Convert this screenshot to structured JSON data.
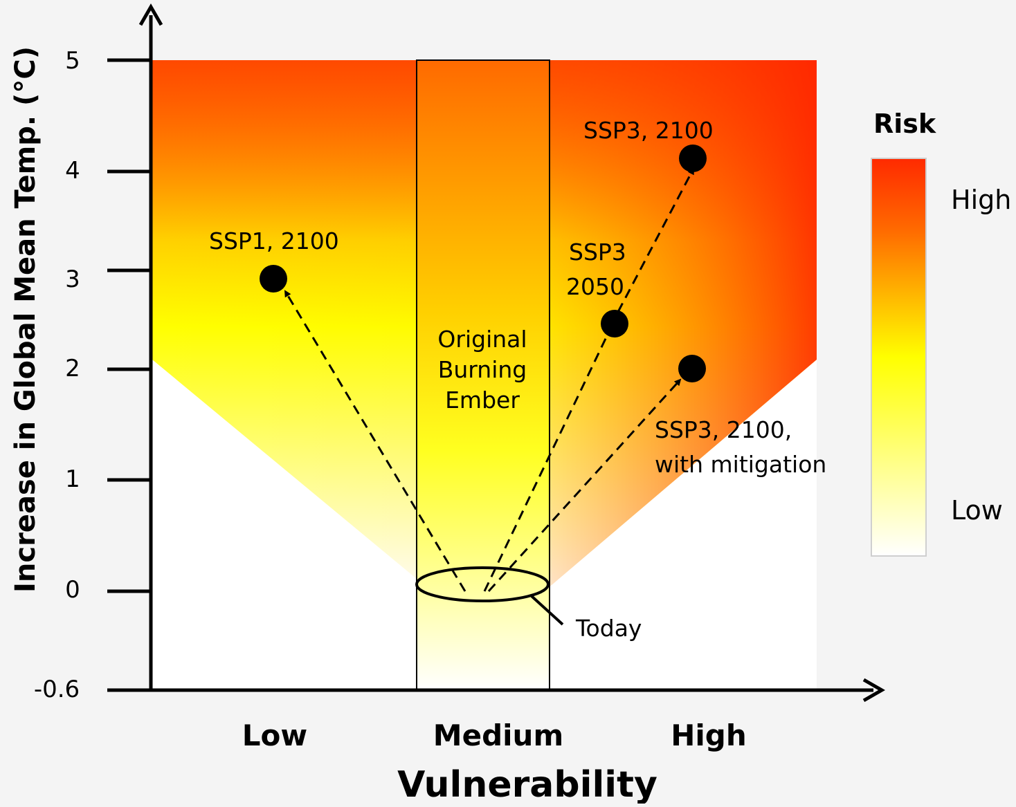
{
  "axes": {
    "y_label": "Increase in Global Mean Temp. (°C)",
    "y_ticks": [
      "5",
      "4",
      "3",
      "2",
      "1",
      "0",
      "-0.6"
    ],
    "x_label": "Vulnerability",
    "x_categories": [
      "Low",
      "Medium",
      "High"
    ]
  },
  "ember": {
    "label_lines": [
      "Original",
      "Burning",
      "Ember"
    ]
  },
  "today": {
    "label": "Today"
  },
  "points": [
    {
      "label_lines": [
        "SSP1, 2100"
      ]
    },
    {
      "label_lines": [
        "SSP3",
        "2050"
      ]
    },
    {
      "label_lines": [
        "SSP3, 2100"
      ]
    },
    {
      "label_lines": [
        "SSP3, 2100,",
        "with mitigation"
      ]
    }
  ],
  "legend": {
    "title": "Risk",
    "high": "High",
    "low": "Low"
  },
  "colors": {
    "risk_high": "#ff2a00",
    "risk_mid": "#ffff00",
    "risk_low": "#ffffff"
  }
}
